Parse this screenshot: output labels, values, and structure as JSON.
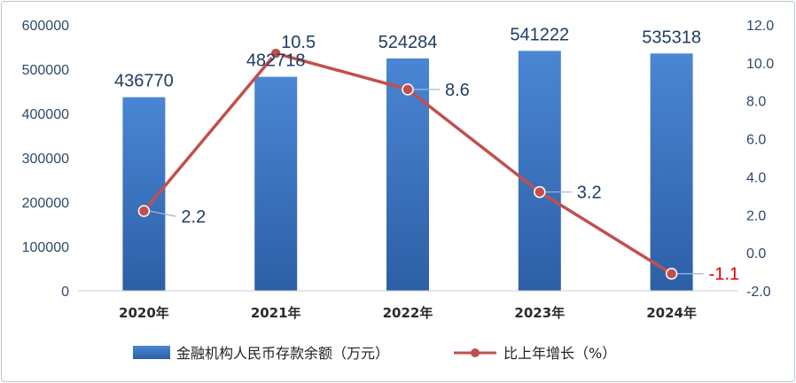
{
  "chart_data": {
    "type": "bar",
    "categories": [
      "2020年",
      "2021年",
      "2022年",
      "2023年",
      "2024年"
    ],
    "series": [
      {
        "name": "金融机构人民币存款余额（万元）",
        "type": "bar",
        "axis": "left",
        "values": [
          436770,
          482718,
          524284,
          541222,
          535318
        ],
        "labels": [
          "436770",
          "482718",
          "524284",
          "541222",
          "535318"
        ]
      },
      {
        "name": "比上年增长（%）",
        "type": "line",
        "axis": "right",
        "values": [
          2.2,
          10.5,
          8.6,
          3.2,
          -1.1
        ],
        "labels": [
          "2.2",
          "10.5",
          "8.6",
          "3.2",
          "-1.1"
        ]
      }
    ],
    "y_left": {
      "range": [
        0,
        600000
      ],
      "ticks": [
        "0",
        "100000",
        "200000",
        "300000",
        "400000",
        "500000",
        "600000"
      ]
    },
    "y_right": {
      "range": [
        -2,
        12
      ],
      "ticks": [
        "-2.0",
        "0.0",
        "2.0",
        "4.0",
        "6.0",
        "8.0",
        "10.0",
        "12.0"
      ]
    },
    "grid": false,
    "legend_position": "bottom",
    "colors": {
      "bar_top": "#4a86d4",
      "bar_bottom": "#2d5fa6",
      "line": "#c0504d",
      "negative_label": "#e00000"
    }
  }
}
